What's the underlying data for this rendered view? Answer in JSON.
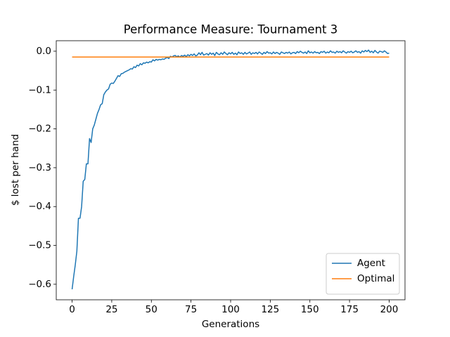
{
  "chart_data": {
    "type": "line",
    "title": "Performance Measure: Tournament 3",
    "xlabel": "Generations",
    "ylabel": "$ lost per hand",
    "xlim": [
      -10,
      210
    ],
    "ylim": [
      -0.64,
      0.027
    ],
    "xticks": [
      0,
      25,
      50,
      75,
      100,
      125,
      150,
      175,
      200
    ],
    "yticks": [
      {
        "value": -0.6,
        "label": "−0.6"
      },
      {
        "value": -0.5,
        "label": "−0.5"
      },
      {
        "value": -0.4,
        "label": "−0.4"
      },
      {
        "value": -0.3,
        "label": "−0.3"
      },
      {
        "value": -0.2,
        "label": "−0.2"
      },
      {
        "value": -0.1,
        "label": "−0.1"
      },
      {
        "value": 0,
        "label": "0.0"
      }
    ],
    "legend": "lower right",
    "series": [
      {
        "name": "Agent",
        "color": "#1f77b4",
        "x": [
          0,
          1,
          2,
          3,
          4,
          5,
          6,
          7,
          8,
          9,
          10,
          11,
          12,
          13,
          14,
          15,
          16,
          17,
          18,
          19,
          20,
          21,
          22,
          23,
          24,
          25,
          26,
          27,
          28,
          29,
          30,
          31,
          32,
          33,
          34,
          35,
          36,
          37,
          38,
          39,
          40,
          41,
          42,
          43,
          44,
          45,
          46,
          47,
          48,
          49,
          50,
          51,
          52,
          53,
          54,
          55,
          56,
          57,
          58,
          59,
          60,
          61,
          62,
          63,
          64,
          65,
          66,
          67,
          68,
          69,
          70,
          71,
          72,
          73,
          74,
          75,
          76,
          77,
          78,
          79,
          80,
          81,
          82,
          83,
          84,
          85,
          86,
          87,
          88,
          89,
          90,
          91,
          92,
          93,
          94,
          95,
          96,
          97,
          98,
          99,
          100,
          101,
          102,
          103,
          104,
          105,
          106,
          107,
          108,
          109,
          110,
          111,
          112,
          113,
          114,
          115,
          116,
          117,
          118,
          119,
          120,
          121,
          122,
          123,
          124,
          125,
          126,
          127,
          128,
          129,
          130,
          131,
          132,
          133,
          134,
          135,
          136,
          137,
          138,
          139,
          140,
          141,
          142,
          143,
          144,
          145,
          146,
          147,
          148,
          149,
          150,
          151,
          152,
          153,
          154,
          155,
          156,
          157,
          158,
          159,
          160,
          161,
          162,
          163,
          164,
          165,
          166,
          167,
          168,
          169,
          170,
          171,
          172,
          173,
          174,
          175,
          176,
          177,
          178,
          179,
          180,
          181,
          182,
          183,
          184,
          185,
          186,
          187,
          188,
          189,
          190,
          191,
          192,
          193,
          194,
          195,
          196,
          197,
          198,
          199,
          200
        ],
        "values": [
          -0.613,
          -0.58,
          -0.55,
          -0.515,
          -0.43,
          -0.43,
          -0.4,
          -0.335,
          -0.33,
          -0.29,
          -0.29,
          -0.225,
          -0.235,
          -0.2,
          -0.19,
          -0.175,
          -0.16,
          -0.15,
          -0.138,
          -0.135,
          -0.112,
          -0.105,
          -0.1,
          -0.097,
          -0.085,
          -0.082,
          -0.083,
          -0.077,
          -0.07,
          -0.063,
          -0.065,
          -0.058,
          -0.057,
          -0.054,
          -0.052,
          -0.05,
          -0.048,
          -0.045,
          -0.046,
          -0.04,
          -0.042,
          -0.036,
          -0.038,
          -0.032,
          -0.035,
          -0.03,
          -0.031,
          -0.028,
          -0.03,
          -0.027,
          -0.028,
          -0.022,
          -0.025,
          -0.021,
          -0.023,
          -0.021,
          -0.022,
          -0.02,
          -0.021,
          -0.018,
          -0.016,
          -0.019,
          -0.013,
          -0.015,
          -0.012,
          -0.011,
          -0.014,
          -0.012,
          -0.015,
          -0.011,
          -0.013,
          -0.01,
          -0.014,
          -0.009,
          -0.012,
          -0.008,
          -0.011,
          -0.007,
          -0.012,
          -0.01,
          -0.004,
          -0.009,
          -0.003,
          -0.01,
          -0.008,
          -0.006,
          -0.01,
          -0.004,
          -0.008,
          -0.005,
          -0.011,
          -0.003,
          -0.007,
          -0.009,
          -0.004,
          -0.008,
          -0.002,
          -0.006,
          -0.009,
          -0.004,
          -0.007,
          -0.003,
          -0.008,
          -0.005,
          -0.009,
          -0.002,
          -0.006,
          -0.004,
          -0.008,
          -0.003,
          -0.007,
          -0.005,
          -0.002,
          -0.008,
          -0.004,
          -0.006,
          -0.003,
          -0.007,
          -0.002,
          -0.005,
          -0.008,
          -0.003,
          -0.006,
          -0.001,
          -0.005,
          -0.004,
          -0.007,
          -0.002,
          -0.006,
          -0.003,
          -0.005,
          -0.008,
          -0.002,
          -0.004,
          -0.006,
          -0.003,
          -0.005,
          -0.002,
          -0.007,
          -0.004,
          -0.003,
          -0.006,
          -0.001,
          -0.004,
          0.0,
          -0.003,
          -0.005,
          -0.002,
          -0.006,
          0.001,
          -0.004,
          -0.002,
          -0.005,
          -0.001,
          -0.004,
          -0.003,
          -0.006,
          -0.001,
          -0.003,
          0.0,
          -0.005,
          -0.002,
          -0.004,
          0.001,
          -0.003,
          -0.002,
          -0.005,
          0.0,
          -0.003,
          -0.001,
          -0.004,
          0.001,
          -0.002,
          -0.005,
          -0.001,
          -0.003,
          0.0,
          -0.004,
          -0.002,
          0.001,
          -0.003,
          -0.001,
          -0.005,
          0.001,
          -0.002,
          0.002,
          -0.001,
          0.003,
          -0.003,
          0.0,
          -0.004,
          0.002,
          -0.002,
          -0.005,
          0.0,
          -0.001,
          -0.003,
          0.001,
          -0.002,
          -0.006,
          -0.005
        ]
      },
      {
        "name": "Optimal",
        "color": "#ff7f0e",
        "x": [
          0,
          200
        ],
        "values": [
          -0.015,
          -0.015
        ]
      }
    ]
  }
}
